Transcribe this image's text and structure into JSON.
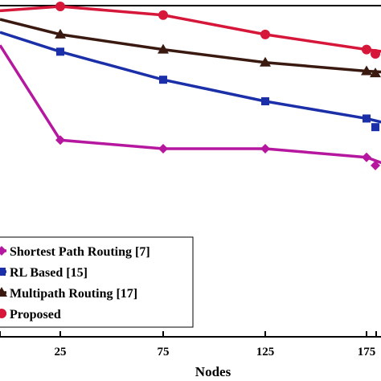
{
  "chart_data": {
    "type": "line",
    "xlabel": "Nodes",
    "ylabel": "",
    "x_tick_labels": [
      "25",
      "75",
      "125",
      "175"
    ],
    "categories": [
      "0",
      "25",
      "75",
      "125",
      "175",
      "200"
    ],
    "series": [
      {
        "name": "Shortest Path Routing [7]",
        "color": "#b5179e",
        "marker": "diamond",
        "values": [
          0.88,
          0.44,
          0.4,
          0.4,
          0.36,
          0.3
        ]
      },
      {
        "name": "RL Based [15]",
        "color": "#1a2fa8",
        "marker": "square",
        "values": [
          0.94,
          0.85,
          0.72,
          0.62,
          0.54,
          0.5
        ]
      },
      {
        "name": "Multipath Routing [17]",
        "color": "#3a1a10",
        "marker": "triangle",
        "values": [
          1.0,
          0.93,
          0.86,
          0.8,
          0.76,
          0.75
        ]
      },
      {
        "name": "Proposed",
        "color": "#d6173a",
        "marker": "circle",
        "values": [
          1.04,
          1.06,
          1.02,
          0.93,
          0.86,
          0.84
        ]
      }
    ],
    "grid": false,
    "legend_placement": "bottom-left"
  }
}
